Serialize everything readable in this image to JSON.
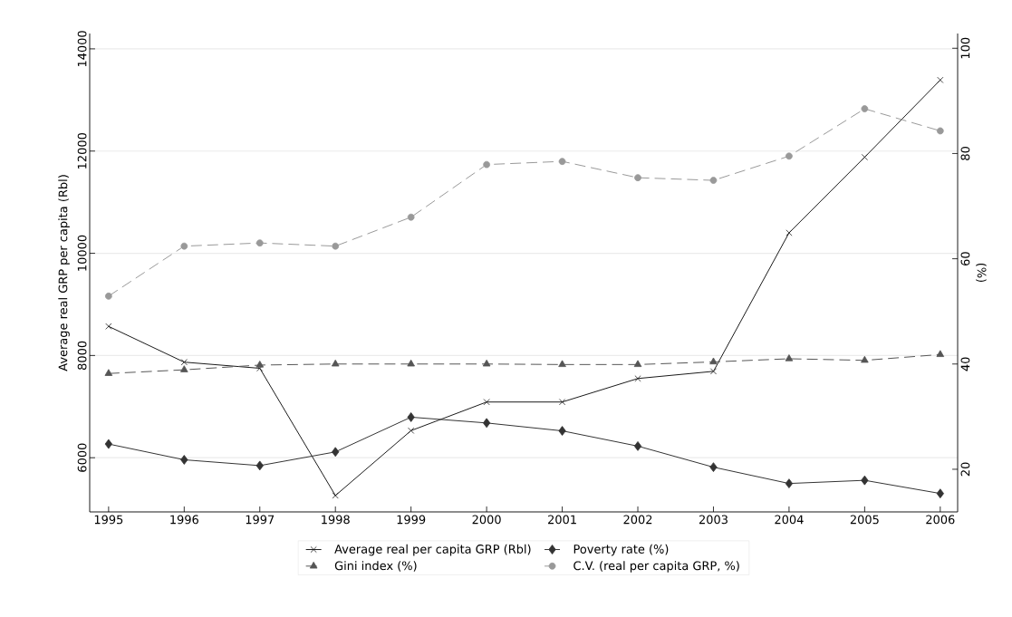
{
  "chart_data": {
    "type": "line",
    "x": [
      1995,
      1996,
      1997,
      1998,
      1999,
      2000,
      2001,
      2002,
      2003,
      2004,
      2005,
      2006
    ],
    "xlim": [
      1994.75,
      2006.23
    ],
    "xticks": [
      1995,
      1996,
      1997,
      1998,
      1999,
      2000,
      2001,
      2002,
      2003,
      2004,
      2005,
      2006
    ],
    "ylabel": "Average real GRP per capita (Rbl)",
    "ylim": [
      4940,
      14300
    ],
    "yticks": [
      6000,
      8000,
      10000,
      12000,
      14000
    ],
    "y2label": "(%)",
    "y2lim": [
      11.9,
      102.8
    ],
    "y2ticks": [
      20,
      40,
      60,
      80,
      100
    ],
    "grid": "y",
    "legend": "bottom",
    "series": [
      {
        "name": "Average real per capita GRP (Rbl)",
        "color": "#1a1a1a",
        "marker": "cross",
        "line_style": "solid",
        "values": [
          8570,
          7870,
          7750,
          5260,
          6530,
          7090,
          7090,
          7550,
          7690,
          10400,
          11880,
          13390
        ]
      },
      {
        "name": "Poverty rate (%)",
        "color": "#333333",
        "marker": "diamond",
        "line_style": "solid",
        "axis": "y2",
        "values": [
          24.8,
          21.8,
          20.7,
          23.3,
          29.9,
          28.8,
          27.3,
          24.4,
          20.4,
          17.3,
          17.9,
          15.4
        ]
      },
      {
        "name": "Gini index (%)",
        "color": "#555555",
        "marker": "triangle",
        "line_style": "dashed",
        "axis": "y2",
        "values": [
          38.2,
          38.9,
          39.8,
          40.0,
          40.0,
          40.0,
          39.9,
          39.9,
          40.4,
          41.0,
          40.7,
          41.8
        ]
      },
      {
        "name": "C.V. (real per capita GRP, %)",
        "color": "#999999",
        "marker": "circle",
        "line_style": "dashed",
        "axis": "y2",
        "values": [
          52.9,
          62.4,
          63.0,
          62.4,
          67.9,
          77.9,
          78.5,
          75.4,
          74.9,
          79.5,
          88.5,
          84.3
        ]
      }
    ]
  }
}
